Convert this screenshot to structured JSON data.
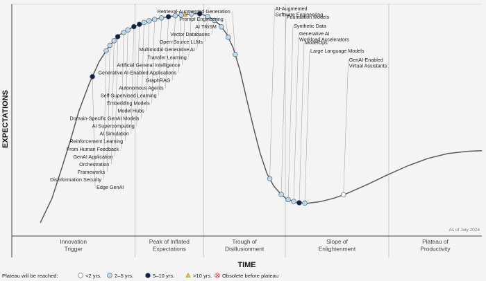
{
  "chart_data": {
    "type": "line",
    "xlabel": "TIME",
    "ylabel": "EXPECTATIONS",
    "as_of": "As of July 2024",
    "phases": [
      "Innovation\nTrigger",
      "Peak of Inflated\nExpectations",
      "Trough of\nDisillusionment",
      "Slope of\nEnlightenment",
      "Plateau of\nProductivity"
    ],
    "legend": {
      "title": "Plateau will be reached:",
      "items": [
        {
          "key": "lt2",
          "label": "<2 yrs.",
          "color": "#ffffff"
        },
        {
          "key": "y2_5",
          "label": "2–5 yrs.",
          "color": "#bcd9ea"
        },
        {
          "key": "y5_10",
          "label": "5–10 yrs.",
          "color": "#0f1f45"
        },
        {
          "key": "gt10",
          "label": ">10 yrs.",
          "color": "#e8b84a"
        },
        {
          "key": "obsolete",
          "label": "Obsolete before plateau",
          "color": "#d64545"
        }
      ]
    },
    "technologies": [
      {
        "label": "Retrieval-Augmented Generation",
        "t": 0.485,
        "cat": "y2_5"
      },
      {
        "label": "Prompt Engineering",
        "t": 0.47,
        "cat": "y2_5"
      },
      {
        "label": "AI TRiSM",
        "t": 0.455,
        "cat": "y2_5"
      },
      {
        "label": "Vector Databases",
        "t": 0.44,
        "cat": "y2_5"
      },
      {
        "label": "Open-Source LLMs",
        "t": 0.425,
        "cat": "y2_5"
      },
      {
        "label": "Multimodal Generative AI",
        "t": 0.408,
        "cat": "y5_10"
      },
      {
        "label": "Transfer Learning",
        "t": 0.39,
        "cat": "y2_5"
      },
      {
        "label": "Artificial General Intelligence",
        "t": 0.376,
        "cat": "gt10"
      },
      {
        "label": "Generative AI-Enabled Applications",
        "t": 0.368,
        "cat": "y2_5"
      },
      {
        "label": "GraphRAG",
        "t": 0.355,
        "cat": "y2_5"
      },
      {
        "label": "Autonomous Agents",
        "t": 0.34,
        "cat": "y5_10"
      },
      {
        "label": "Self-Supervised Learning",
        "t": 0.325,
        "cat": "y2_5"
      },
      {
        "label": "Embedding Models",
        "t": 0.31,
        "cat": "y2_5"
      },
      {
        "label": "Model Hubs",
        "t": 0.298,
        "cat": "y2_5"
      },
      {
        "label": "Domain-Specific GenAI Models",
        "t": 0.287,
        "cat": "y2_5"
      },
      {
        "label": "AI Supercomputing",
        "t": 0.277,
        "cat": "y5_10"
      },
      {
        "label": "AI Simulation",
        "t": 0.265,
        "cat": "y5_10"
      },
      {
        "label": "Reinforcement Learning",
        "t": 0.252,
        "cat": "y2_5"
      },
      {
        "label": "From Human Feedback",
        "t": 0.243,
        "cat": "y2_5"
      },
      {
        "label": "GenAI Application",
        "t": 0.23,
        "cat": "y5_10"
      },
      {
        "label": "Orchestration",
        "t": 0.222,
        "cat": "y2_5"
      },
      {
        "label": "Frameworks",
        "t": 0.213,
        "cat": "y2_5"
      },
      {
        "label": "Disinformation Security",
        "t": 0.205,
        "cat": "y2_5"
      },
      {
        "label": "Edge GenAI",
        "t": 0.175,
        "cat": "y5_10"
      },
      {
        "label": "AI-Augmented\nSoftware Engineering",
        "t": 0.56,
        "cat": "y2_5"
      },
      {
        "label": "Foundation Models",
        "t": 0.585,
        "cat": "y2_5"
      },
      {
        "label": "Synthetic Data",
        "t": 0.6,
        "cat": "y2_5"
      },
      {
        "label": "Generative AI\nWorkload Accelerators",
        "t": 0.612,
        "cat": "y2_5"
      },
      {
        "label": "ModelOps",
        "t": 0.624,
        "cat": "y5_10"
      },
      {
        "label": "Large Language Models",
        "t": 0.636,
        "cat": "y2_5"
      },
      {
        "label": "GenAI-Enabled\nVirtual Assistants",
        "t": 0.72,
        "cat": "lt2"
      }
    ]
  }
}
